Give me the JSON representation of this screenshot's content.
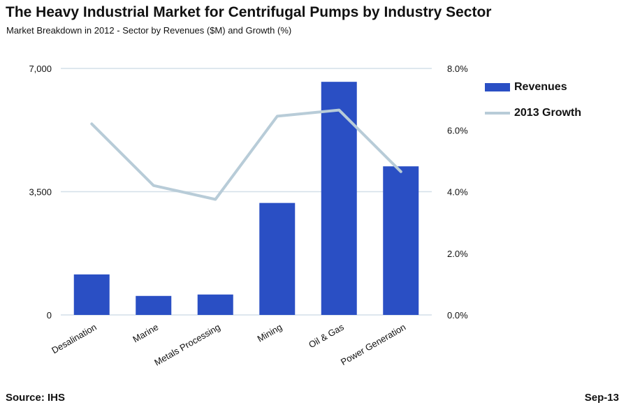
{
  "chart_data": {
    "type": "bar",
    "title": "The Heavy Industrial Market for Centrifugal Pumps by Industry Sector",
    "subtitle": "Market Breakdown in 2012 - Sector by Revenues ($M) and Growth (%)",
    "categories": [
      "Desalination",
      "Marine",
      "Metals Processing",
      "Mining",
      "Oil & Gas",
      "Power Generation"
    ],
    "series": [
      {
        "name": "Revenues",
        "type": "bar",
        "axis": "left",
        "color": "#2a4fc4",
        "values": [
          1150,
          540,
          580,
          3180,
          6620,
          4220
        ]
      },
      {
        "name": "2013 Growth",
        "type": "line",
        "axis": "right",
        "color": "#b8ccd8",
        "values": [
          6.2,
          4.2,
          3.75,
          6.45,
          6.65,
          4.65
        ]
      }
    ],
    "y_left": {
      "range": [
        0,
        7000
      ],
      "ticks": [
        0,
        3500,
        7000
      ],
      "tick_labels": [
        "0",
        "3,500",
        "7,000"
      ]
    },
    "y_right": {
      "range": [
        0,
        8
      ],
      "ticks": [
        0,
        2,
        4,
        6,
        8
      ],
      "tick_labels": [
        "0.0%",
        "2.0%",
        "4.0%",
        "6.0%",
        "8.0%"
      ]
    },
    "grid": true,
    "legend_position": "right"
  },
  "footer": {
    "source": "Source: IHS",
    "date": "Sep-13"
  }
}
